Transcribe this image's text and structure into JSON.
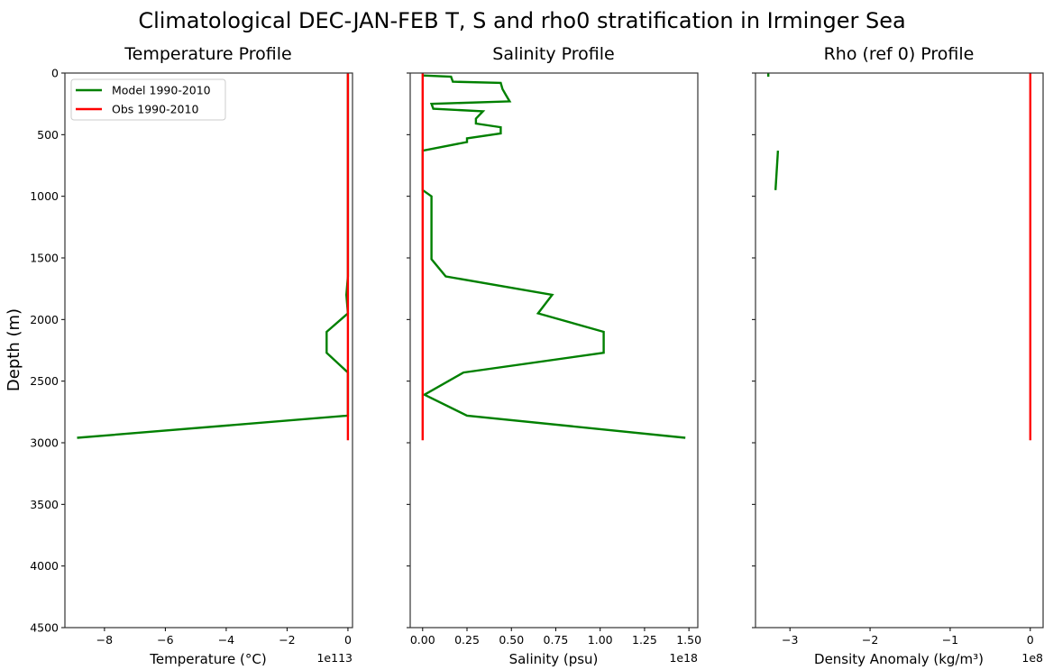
{
  "figure": {
    "suptitle": "Climatological DEC-JAN-FEB T, S and rho0 stratification in Irminger Sea",
    "ylabel": "Depth (m)",
    "yticks": [
      "0",
      "500",
      "1000",
      "1500",
      "2000",
      "2500",
      "3000",
      "3500",
      "4000",
      "4500"
    ],
    "legend": {
      "items": [
        {
          "label": "Model 1990-2010",
          "color": "#008000"
        },
        {
          "label": "Obs 1990-2010",
          "color": "#ff0000"
        }
      ]
    },
    "panels": [
      {
        "title": "Temperature Profile",
        "xlabel": "Temperature (°C)",
        "offset": "1e113",
        "xticks": [
          "−8",
          "−6",
          "−4",
          "−2",
          "0"
        ]
      },
      {
        "title": "Salinity Profile",
        "xlabel": "Salinity (psu)",
        "offset": "1e18",
        "xticks": [
          "0.00",
          "0.25",
          "0.50",
          "0.75",
          "1.00",
          "1.25",
          "1.50"
        ]
      },
      {
        "title": "Rho (ref 0) Profile",
        "xlabel": "Density Anomaly (kg/m³)",
        "offset": "1e8",
        "xticks": [
          "−3",
          "−2",
          "−1",
          "0"
        ]
      }
    ]
  },
  "chart_data": [
    {
      "type": "line",
      "title": "Temperature Profile",
      "xlabel": "Temperature (°C)",
      "ylabel": "Depth (m)",
      "x_scale_offset": "1e113",
      "xlim": [
        -9.3,
        0.15
      ],
      "ylim": [
        4500,
        0
      ],
      "y_inverted": true,
      "grid": false,
      "legend_position": "upper left",
      "series": [
        {
          "name": "Model 1990-2010",
          "color": "#008000",
          "x": [
            0,
            0,
            -0.05,
            0,
            -0.7,
            -0.7,
            0,
            0,
            -8.9
          ],
          "y": [
            0,
            1650,
            1800,
            1950,
            2100,
            2270,
            2430,
            2780,
            2960
          ]
        },
        {
          "name": "Obs 1990-2010",
          "color": "#ff0000",
          "x": [
            0,
            0
          ],
          "y": [
            0,
            2980
          ]
        }
      ]
    },
    {
      "type": "line",
      "title": "Salinity Profile",
      "xlabel": "Salinity (psu)",
      "ylabel": "Depth (m)",
      "x_scale_offset": "1e18",
      "xlim": [
        -0.07,
        1.55
      ],
      "ylim": [
        4500,
        0
      ],
      "y_inverted": true,
      "grid": false,
      "series": [
        {
          "name": "Model 1990-2010",
          "color": "#008000",
          "x": [
            0.0,
            0.16,
            0.17,
            0.44,
            0.45,
            0.47,
            0.49,
            0.05,
            0.06,
            0.34,
            0.3,
            0.3,
            0.44,
            0.44,
            0.25,
            0.25,
            0.0,
            0.0,
            0.0,
            0.05,
            0.05,
            0.05,
            0.13,
            0.73,
            0.65,
            1.02,
            1.02,
            0.23,
            0.01,
            0.25,
            1.48
          ],
          "y": [
            20,
            30,
            70,
            80,
            130,
            180,
            230,
            250,
            290,
            310,
            370,
            410,
            440,
            490,
            530,
            560,
            630,
            900,
            950,
            1000,
            1050,
            1510,
            1650,
            1800,
            1950,
            2100,
            2270,
            2430,
            2610,
            2780,
            2960
          ]
        },
        {
          "name": "Obs 1990-2010",
          "color": "#ff0000",
          "x": [
            0,
            0
          ],
          "y": [
            0,
            2980
          ]
        }
      ]
    },
    {
      "type": "line",
      "title": "Rho (ref 0) Profile",
      "xlabel": "Density Anomaly (kg/m³)",
      "ylabel": "Depth (m)",
      "x_scale_offset": "1e8",
      "xlim": [
        -3.43,
        0.16
      ],
      "ylim": [
        4500,
        0
      ],
      "y_inverted": true,
      "grid": false,
      "series": [
        {
          "name": "Model 1990-2010",
          "color": "#008000",
          "segments": [
            {
              "x": [
                -3.27,
                -3.27
              ],
              "y": [
                0,
                30
              ]
            },
            {
              "x": [
                -3.15,
                -3.18
              ],
              "y": [
                630,
                950
              ]
            }
          ]
        },
        {
          "name": "Obs 1990-2010",
          "color": "#ff0000",
          "x": [
            0,
            0
          ],
          "y": [
            0,
            2980
          ]
        }
      ]
    }
  ]
}
